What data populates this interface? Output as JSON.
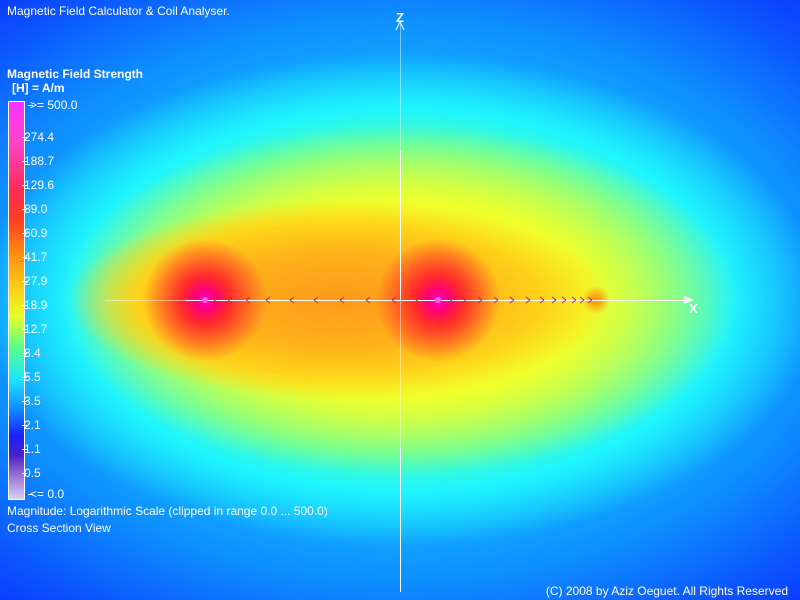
{
  "app": {
    "title": "Magnetic Field Calculator & Coil Analyser."
  },
  "legend": {
    "title": "Magnetic Field Strength",
    "unit": "[H] = A/m",
    "ticks": [
      ">= 500.0",
      "274.4",
      "188.7",
      "129.6",
      "89.0",
      "60.9",
      "41.7",
      "27.9",
      "18.9",
      "12.7",
      "8.4",
      "5.5",
      "3.5",
      "2.1",
      "1.1",
      "0.5",
      "<= 0.0"
    ]
  },
  "axes": {
    "x_label": "X",
    "z_label": "Z"
  },
  "footer": {
    "scale_note": "Magnitude: Logarithmic Scale (clipped in range 0.0 ... 500.0)",
    "view_name": "Cross Section View",
    "copyright": "(C) 2008 by Aziz Oeguet. All Rights Reserved"
  },
  "colors": {
    "coil_max": "#ff00d8",
    "field_high": "#ff2a2a",
    "field_mid": "#f6ff2a",
    "field_low": "#1fe6ff",
    "background": "#0a30ff",
    "text": "#ffffff"
  }
}
